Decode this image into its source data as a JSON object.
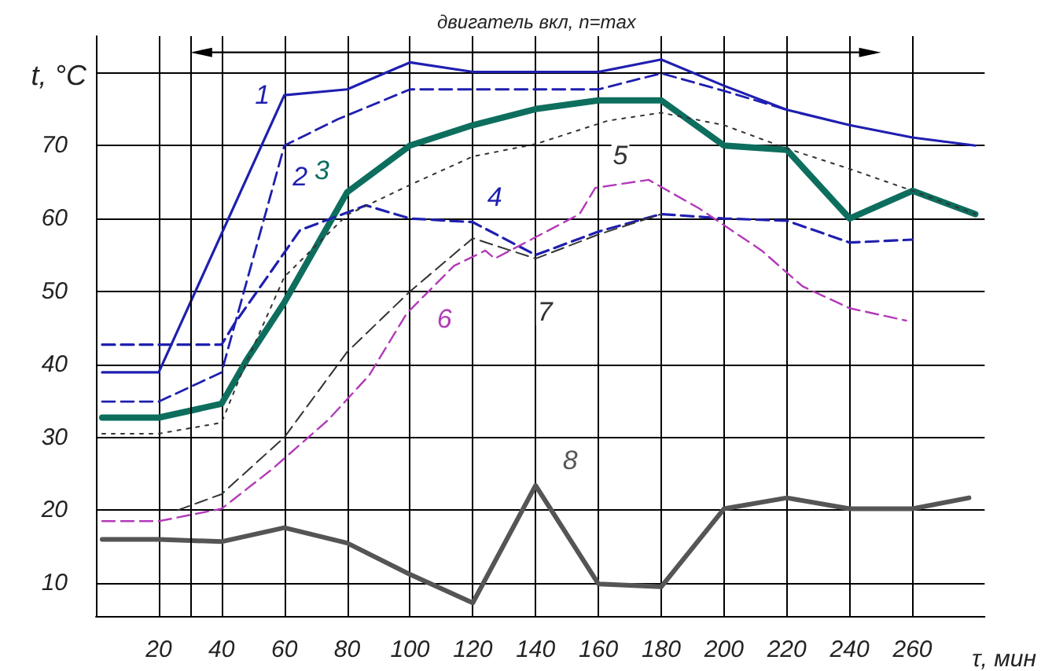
{
  "chart_data": {
    "type": "line",
    "xlabel": "τ, мин",
    "ylabel": "t, °C",
    "xlim": [
      0,
      283
    ],
    "ylim": [
      5.5,
      85
    ],
    "xticks": [
      20,
      40,
      60,
      80,
      100,
      120,
      140,
      160,
      180,
      200,
      220,
      240,
      260
    ],
    "yticks": [
      10,
      20,
      30,
      40,
      50,
      60,
      70,
      {
        "value": 80,
        "label": null
      }
    ],
    "grid": true,
    "legend": false,
    "marker": "none",
    "ref_lines": [
      {
        "axis": "x",
        "value": 30,
        "label": null,
        "color": "#000000"
      }
    ],
    "annotations": [
      "двигатель вкл, n=max"
    ],
    "series": [
      {
        "name": "1",
        "color": "#1f1fb0",
        "line_style": "solid",
        "x": [
          2,
          20,
          60,
          80,
          100,
          120,
          160,
          180,
          200,
          220,
          240,
          260,
          280
        ],
        "values": [
          38.9,
          38.9,
          76.9,
          77.7,
          81.4,
          80.1,
          80.1,
          81.8,
          78.2,
          74.9,
          72.8,
          71.1,
          70
        ]
      },
      {
        "name": "2",
        "color": "#1f1fb0",
        "line_style": "dashed",
        "x": [
          2,
          20,
          40,
          60,
          77,
          100,
          160,
          180,
          200,
          220
        ],
        "values": [
          34.9,
          34.9,
          38.9,
          70,
          73.6,
          77.7,
          77.7,
          79.9,
          77.5,
          74.9
        ]
      },
      {
        "name": "3",
        "color": "#0d6e5e",
        "line_style": "solid",
        "x": [
          2,
          20,
          40,
          48,
          60,
          80,
          100,
          120,
          140,
          160,
          180,
          200,
          220,
          240,
          260,
          280
        ],
        "values": [
          32.7,
          32.7,
          34.6,
          40.6,
          48.5,
          63.6,
          70,
          72.8,
          75,
          76.2,
          76.2,
          70,
          69.4,
          60,
          63.8,
          60.6
        ]
      },
      {
        "name": "4",
        "color": "#1f1fb0",
        "line_style": "dashed",
        "x": [
          2,
          40,
          44,
          65,
          86,
          100,
          120,
          140,
          160,
          180,
          200,
          220,
          240,
          260
        ],
        "values": [
          42.7,
          42.7,
          45.5,
          58.4,
          61.8,
          60,
          59.5,
          55,
          58.2,
          60.6,
          60,
          59.7,
          56.7,
          57.1
        ]
      },
      {
        "name": "5",
        "color": "#333333",
        "line_style": "dotted",
        "x": [
          2,
          20,
          40,
          46,
          60,
          80,
          100,
          120,
          140,
          163,
          180,
          200,
          220,
          240,
          260,
          280
        ],
        "values": [
          30.5,
          30.5,
          32,
          38.4,
          52,
          60.5,
          64.6,
          68.5,
          70.2,
          73.4,
          74.5,
          72.8,
          69.6,
          66.8,
          63.8,
          60.6
        ]
      },
      {
        "name": "6",
        "color": "#b23ab8",
        "line_style": "dashed",
        "x": [
          2,
          20,
          40,
          56,
          74,
          87,
          99,
          114,
          124,
          127,
          154,
          159,
          176,
          192,
          212,
          225,
          240,
          258
        ],
        "values": [
          18.5,
          18.5,
          20.2,
          25.6,
          32.4,
          38.5,
          47,
          53.5,
          55.6,
          54.5,
          60.6,
          64.2,
          65.3,
          61.4,
          55.6,
          50.7,
          47.7,
          46
        ]
      },
      {
        "name": "7",
        "color": "#333333",
        "line_style": "dashed",
        "x": [
          26,
          40,
          60,
          80,
          100,
          120,
          140,
          160,
          180
        ],
        "values": [
          20,
          22.2,
          30,
          41.7,
          50,
          57.3,
          54.5,
          57.8,
          60.6
        ]
      },
      {
        "name": "8",
        "color": "#555555",
        "line_style": "solid",
        "x": [
          2,
          20,
          40,
          60,
          80,
          100,
          120,
          140,
          160,
          180,
          200,
          220,
          240,
          260,
          278
        ],
        "values": [
          16,
          16,
          15.7,
          17.6,
          15.5,
          11.2,
          7.3,
          23.4,
          9.9,
          9.5,
          20.2,
          21.7,
          20.2,
          20.2,
          21.7
        ]
      }
    ]
  }
}
